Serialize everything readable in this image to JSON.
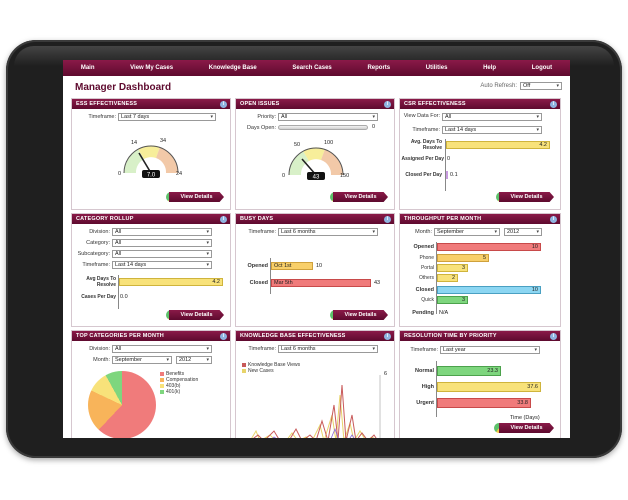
{
  "nav": [
    "Main",
    "View My Cases",
    "Knowledge Base",
    "Search Cases",
    "Reports",
    "Utilities",
    "Help",
    "Logout"
  ],
  "title": "Manager Dashboard",
  "auto_refresh": {
    "label": "Auto Refresh:",
    "value": "Off"
  },
  "view_details": "View Details",
  "ess": {
    "title": "ESS EFFECTIVENESS",
    "timeframe_label": "Timeframe:",
    "timeframe": "Last 7 days",
    "gauge": {
      "min": "0",
      "t1": "14",
      "t2": "34",
      "max": "24",
      "value": "7.0"
    }
  },
  "open_issues": {
    "title": "OPEN ISSUES",
    "priority_label": "Priority:",
    "priority": "All",
    "days_open_label": "Days Open:",
    "days_open": "0",
    "gauge": {
      "min": "0",
      "t1": "50",
      "t2": "100",
      "max": "150",
      "value": "43"
    }
  },
  "csr": {
    "title": "CSR EFFECTIVENESS",
    "view_data_label": "View Data For:",
    "view_data": "All",
    "timeframe_label": "Timeframe:",
    "timeframe": "Last 14 days",
    "rows": [
      {
        "label": "Avg. Days To Resolve",
        "value": "4.2"
      },
      {
        "label": "Assigned Per Day",
        "value": "0"
      },
      {
        "label": "Closed Per Day",
        "value": "0.1"
      }
    ]
  },
  "rollup": {
    "title": "CATEGORY ROLLUP",
    "fields": [
      {
        "label": "Division:",
        "value": "All"
      },
      {
        "label": "Category:",
        "value": "All"
      },
      {
        "label": "Subcategory:",
        "value": "All"
      },
      {
        "label": "Timeframe:",
        "value": "Last 14 days"
      }
    ],
    "avg_label": "Avg Days To Resolve",
    "avg_value": "4.2",
    "cases_label": "Cases Per Day",
    "cases_value": "0.0"
  },
  "busy": {
    "title": "BUSY DAYS",
    "timeframe_label": "Timeframe:",
    "timeframe": "Last 6 months",
    "rows": [
      {
        "label": "Opened",
        "bar": "Oct 1st",
        "value": "10"
      },
      {
        "label": "Closed",
        "bar": "Mar 5th",
        "value": "43"
      }
    ]
  },
  "throughput": {
    "title": "THROUGHPUT PER MONTH",
    "month_label": "Month:",
    "month": "September",
    "year": "2012",
    "opened_label": "Opened",
    "opened_value": "10",
    "sub": [
      {
        "label": "Phone",
        "value": "5"
      },
      {
        "label": "Portal",
        "value": "3"
      },
      {
        "label": "Others",
        "value": "2"
      }
    ],
    "closed_label": "Closed",
    "closed_value": "10",
    "quick_label": "Quick",
    "quick_value": "3",
    "pending_label": "Pending",
    "pending_value": "N/A"
  },
  "top_cat": {
    "title": "TOP CATEGORIES PER MONTH",
    "division_label": "Division:",
    "division": "All",
    "month_label": "Month:",
    "month": "September",
    "year": "2012",
    "legend": [
      "Benefits",
      "Compensation",
      "403(b)",
      "401(k)"
    ]
  },
  "kb": {
    "title": "KNOWLEDGE BASE EFFECTIVENESS",
    "timeframe_label": "Timeframe:",
    "timeframe": "Last 6 months",
    "legend": [
      "Knowledge Base Views",
      "New Cases"
    ],
    "ymax": "6"
  },
  "resolution": {
    "title": "RESOLUTION TIME BY PRIORITY",
    "timeframe_label": "Timeframe:",
    "timeframe": "Last year",
    "rows": [
      {
        "label": "Normal",
        "value": "23.3"
      },
      {
        "label": "High",
        "value": "37.6"
      },
      {
        "label": "Urgent",
        "value": "33.8"
      }
    ],
    "xlabel": "Time (Days)"
  },
  "colors": {
    "brand": "#5e0a2e",
    "yellow": "#f8e27a",
    "red": "#f07b7b",
    "green": "#7ed67e",
    "blue": "#8cd6f2"
  }
}
